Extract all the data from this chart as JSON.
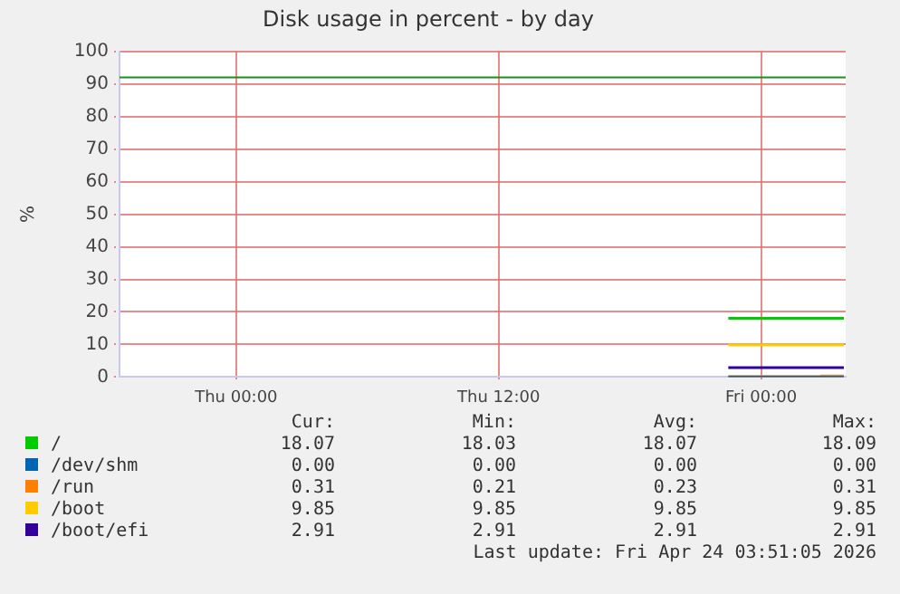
{
  "chart_data": {
    "type": "line",
    "title": "Disk usage in percent - by day",
    "ylabel": "%",
    "xlim": [
      "2026-04-22T18:40",
      "2026-04-24T03:52"
    ],
    "xticks": [
      {
        "value": "2026-04-23T00:00",
        "label": "Thu 00:00"
      },
      {
        "value": "2026-04-23T12:00",
        "label": "Thu 12:00"
      },
      {
        "value": "2026-04-24T00:00",
        "label": "Fri 00:00"
      }
    ],
    "ylim": [
      0,
      100
    ],
    "yticks": [
      0,
      10,
      20,
      30,
      40,
      50,
      60,
      70,
      80,
      90,
      100
    ],
    "grid": true,
    "legend": "bottom",
    "marker": "none",
    "line_style": "solid",
    "series": [
      {
        "name": "/",
        "color": "#00cc00",
        "x": [
          "2026-04-23T22:30",
          "2026-04-24T03:47"
        ],
        "values": [
          18.07,
          18.07
        ]
      },
      {
        "name": "/dev/shm",
        "color": "#0066b3",
        "x": [
          "2026-04-23T22:30",
          "2026-04-24T03:47"
        ],
        "values": [
          0,
          0
        ]
      },
      {
        "name": "/run",
        "color": "#ff8000",
        "x": [
          "2026-04-23T22:30",
          "2026-04-24T02:44",
          "2026-04-24T02:44",
          "2026-04-24T03:47"
        ],
        "values": [
          0.21,
          0.21,
          0.31,
          0.31
        ]
      },
      {
        "name": "/boot",
        "color": "#ffcc00",
        "x": [
          "2026-04-23T22:30",
          "2026-04-24T03:47"
        ],
        "values": [
          9.85,
          9.85
        ]
      },
      {
        "name": "/boot/efi",
        "color": "#330099",
        "x": [
          "2026-04-23T22:30",
          "2026-04-24T03:47"
        ],
        "values": [
          2.91,
          2.91
        ]
      }
    ],
    "ref_lines": [
      {
        "axis": "y",
        "value": 92,
        "color": "#228b22"
      }
    ],
    "annotations": [
      "Cur:",
      "Min:",
      "Avg:",
      "Max:",
      "18.07",
      "18.03",
      "18.07",
      "18.09",
      "0.00",
      "0.00",
      "0.00",
      "0.00",
      "0.31",
      "0.21",
      "0.23",
      "0.31",
      "9.85",
      "9.85",
      "9.85",
      "9.85",
      "2.91",
      "2.91",
      "2.91",
      "2.91",
      "Last update: Fri Apr 24 03:51:05 2026"
    ]
  }
}
